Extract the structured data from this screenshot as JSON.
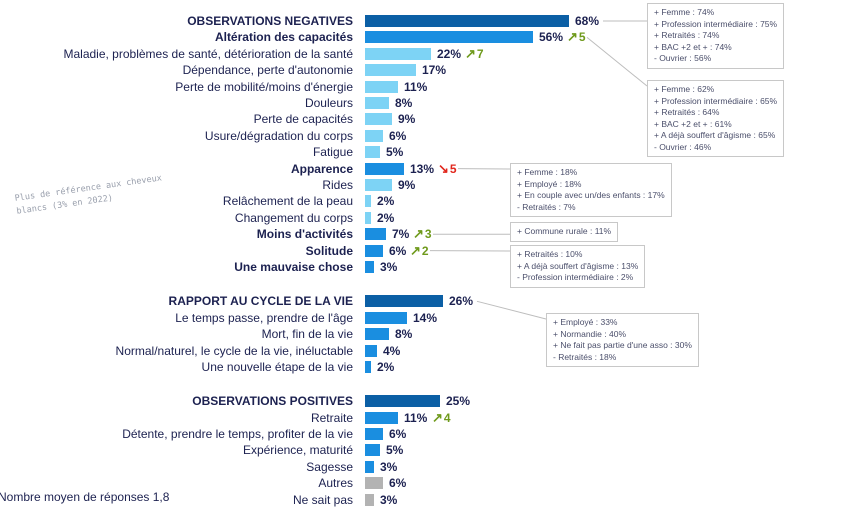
{
  "chart_data": {
    "type": "bar",
    "orientation": "horizontal",
    "title": "",
    "xlabel": "",
    "ylabel": "",
    "xlim": [
      0,
      100
    ],
    "unit": "%",
    "grid": false,
    "colors": {
      "group_total": "#0b5fa5",
      "main": "#1a8ee0",
      "sub": "#7dd3f5",
      "other": "#b3b3b3",
      "trend_up": "#6f9a1c",
      "trend_down": "#e1261c"
    },
    "rows": [
      {
        "label": "OBSERVATIONS NEGATIVES",
        "value": 68,
        "level": "group",
        "bold": true
      },
      {
        "label": "Altération des capacités",
        "value": 56,
        "level": "main",
        "bold": true,
        "trend": {
          "dir": "up",
          "delta": "5"
        }
      },
      {
        "label": "Maladie, problèmes de santé, détérioration de la santé",
        "value": 22,
        "level": "sub",
        "trend": {
          "dir": "up",
          "delta": "7"
        }
      },
      {
        "label": "Dépendance, perte d'autonomie",
        "value": 17,
        "level": "sub"
      },
      {
        "label": "Perte de mobilité/moins d'énergie",
        "value": 11,
        "level": "sub"
      },
      {
        "label": "Douleurs",
        "value": 8,
        "level": "sub"
      },
      {
        "label": "Perte de capacités",
        "value": 9,
        "level": "sub"
      },
      {
        "label": "Usure/dégradation du corps",
        "value": 6,
        "level": "sub"
      },
      {
        "label": "Fatigue",
        "value": 5,
        "level": "sub"
      },
      {
        "label": "Apparence",
        "value": 13,
        "level": "main",
        "bold": true,
        "trend": {
          "dir": "down",
          "delta": "5"
        }
      },
      {
        "label": "Rides",
        "value": 9,
        "level": "sub"
      },
      {
        "label": "Relâchement de la peau",
        "value": 2,
        "level": "sub"
      },
      {
        "label": "Changement du corps",
        "value": 2,
        "level": "sub"
      },
      {
        "label": "Moins d'activités",
        "value": 7,
        "level": "main",
        "bold": true,
        "trend": {
          "dir": "up",
          "delta": "3"
        }
      },
      {
        "label": "Solitude",
        "value": 6,
        "level": "main",
        "bold": true,
        "trend": {
          "dir": "up",
          "delta": "2"
        }
      },
      {
        "label": "Une mauvaise chose",
        "value": 3,
        "level": "main",
        "bold": true
      },
      {
        "label": "",
        "value": null,
        "level": "spacer"
      },
      {
        "label": "RAPPORT AU CYCLE DE LA VIE",
        "value": 26,
        "level": "group",
        "bold": true
      },
      {
        "label": "Le temps passe, prendre de l'âge",
        "value": 14,
        "level": "main"
      },
      {
        "label": "Mort, fin de la vie",
        "value": 8,
        "level": "main"
      },
      {
        "label": "Normal/naturel, le cycle de la vie, inéluctable",
        "value": 4,
        "level": "main"
      },
      {
        "label": "Une nouvelle étape de la vie",
        "value": 2,
        "level": "main"
      },
      {
        "label": "",
        "value": null,
        "level": "spacer"
      },
      {
        "label": "OBSERVATIONS POSITIVES",
        "value": 25,
        "level": "group",
        "bold": true
      },
      {
        "label": "Retraite",
        "value": 11,
        "level": "main",
        "trend": {
          "dir": "up",
          "delta": "4"
        }
      },
      {
        "label": "Détente, prendre le temps, profiter de la vie",
        "value": 6,
        "level": "main"
      },
      {
        "label": "Expérience, maturité",
        "value": 5,
        "level": "main"
      },
      {
        "label": "Sagesse",
        "value": 3,
        "level": "main"
      },
      {
        "label": "Autres",
        "value": 6,
        "level": "other"
      },
      {
        "label": "Ne sait pas",
        "value": 3,
        "level": "other"
      }
    ],
    "annotations": [
      {
        "anchor_row": 0,
        "lines": [
          "+ Femme : 74%",
          "+ Profession intermédiaire : 75%",
          "+ Retraités : 74%",
          "+ BAC +2 et + : 74%",
          "- Ouvrier : 56%"
        ]
      },
      {
        "anchor_row": 1,
        "lines": [
          "+ Femme : 62%",
          "+ Profession intermédiaire : 65%",
          "+ Retraités : 64%",
          "+ BAC +2 et + : 61%",
          "+ A déjà souffert d'âgisme : 65%",
          "- Ouvrier : 46%"
        ]
      },
      {
        "anchor_row": 9,
        "lines": [
          "+ Femme : 18%",
          "+ Employé : 18%",
          "+ En couple avec un/des enfants : 17%",
          "- Retraités : 7%"
        ]
      },
      {
        "anchor_row": 13,
        "lines": [
          "+ Commune rurale : 11%"
        ]
      },
      {
        "anchor_row": 14,
        "lines": [
          "+ Retraités : 10%",
          "+ A déjà souffert d'âgisme : 13%",
          "- Profession intermédiaire : 2%"
        ]
      },
      {
        "anchor_row": 17,
        "lines": [
          "+ Employé : 33%",
          "+ Normandie : 40%",
          "+ Ne fait pas partie d'une asso : 30%",
          "- Retraités : 18%"
        ]
      }
    ],
    "side_note": "Plus de référence aux cheveux blancs (3% en 2022)",
    "footnote": "Nombre moyen de réponses 1,8"
  }
}
